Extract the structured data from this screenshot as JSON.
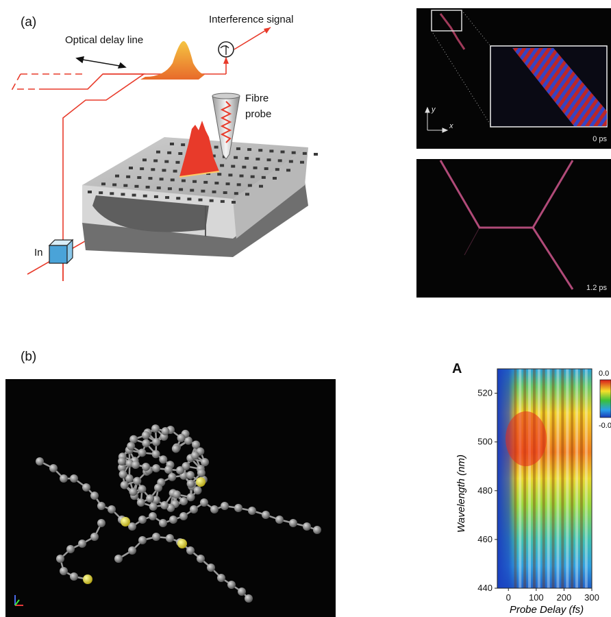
{
  "panel_a": {
    "label": "(a)",
    "optical_delay_line": "Optical delay line",
    "interference_signal": "Interference signal",
    "fibre_probe_line1": "Fibre",
    "fibre_probe_line2": "probe",
    "input": "In"
  },
  "image_top": {
    "axis_y": "y",
    "axis_x": "x",
    "time": "0 ps"
  },
  "image_bottom": {
    "time": "1.2 ps"
  },
  "panel_b": {
    "label": "(b)"
  },
  "panel_A": {
    "label": "A",
    "ylabel": "Wavelength (nm)",
    "xlabel": "Probe Delay (fs)",
    "colorbar_top": "0.0",
    "colorbar_bottom": "-0.0"
  },
  "chart_data": {
    "type": "heatmap",
    "xlabel": "Probe Delay (fs)",
    "ylabel": "Wavelength (nm)",
    "x_ticks": [
      0,
      100,
      200,
      300
    ],
    "y_ticks": [
      440,
      460,
      480,
      500,
      520
    ],
    "xlim": [
      -40,
      300
    ],
    "ylim": [
      440,
      530
    ],
    "colorbar_labels": [
      "0.0",
      "-0.0"
    ]
  },
  "colors": {
    "beam": "#e83a2a",
    "sulfur": "#e8e83a",
    "atom": "#8a8a8a"
  }
}
